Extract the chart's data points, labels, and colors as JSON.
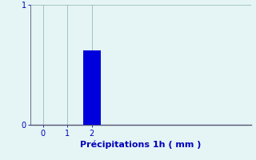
{
  "categories": [
    0,
    1,
    2
  ],
  "values": [
    0,
    0,
    0.62
  ],
  "bar_color": "#0000dd",
  "background_color": "#e5f5f5",
  "grid_color": "#99bbbb",
  "axis_color": "#555577",
  "text_color": "#0000bb",
  "xlabel": "Précipitations 1h ( mm )",
  "xlabel_fontsize": 8,
  "tick_fontsize": 7,
  "ylim": [
    0,
    1
  ],
  "xlim": [
    -0.5,
    8.5
  ],
  "bar_width": 0.7,
  "yticks": [
    0,
    1
  ],
  "xticks": [
    0,
    1,
    2
  ]
}
